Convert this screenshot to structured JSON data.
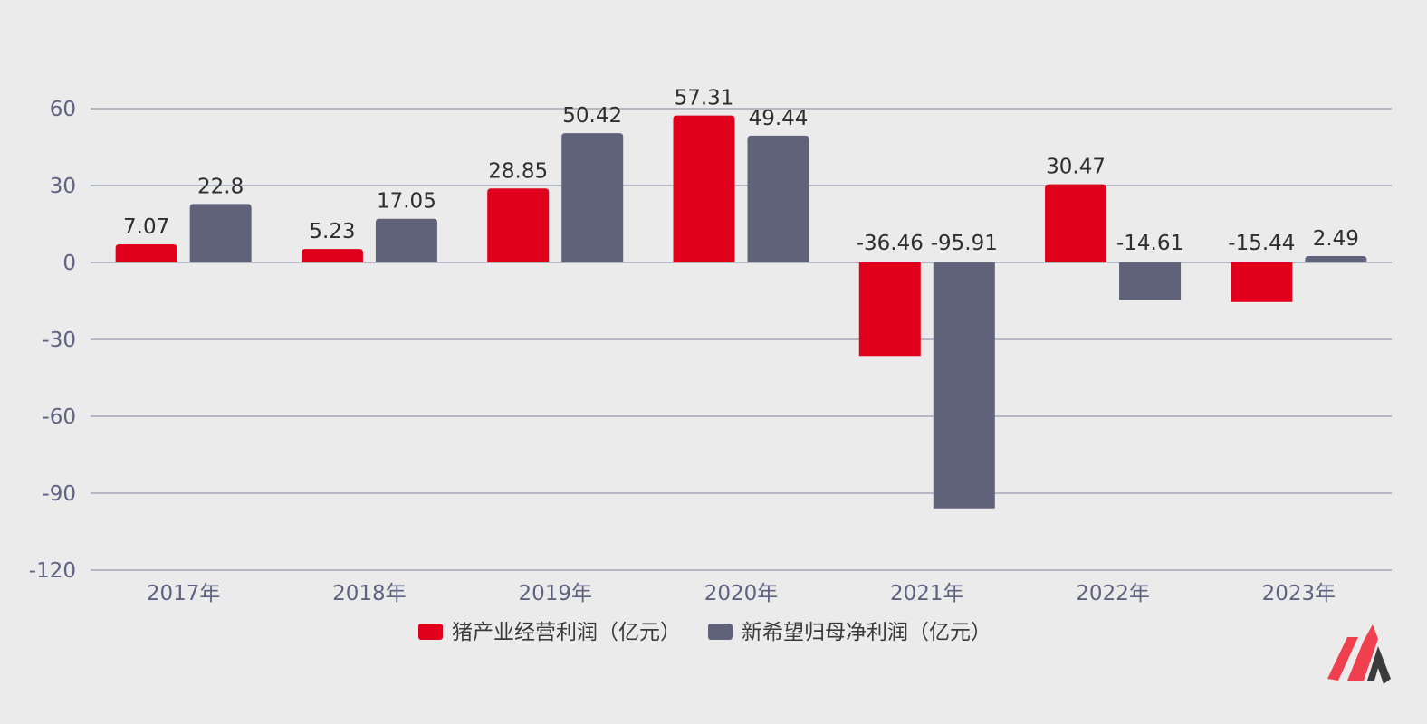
{
  "chart_data": {
    "type": "bar",
    "title": "",
    "xlabel": "",
    "ylabel": "",
    "categories": [
      "2017年",
      "2018年",
      "2019年",
      "2020年",
      "2021年",
      "2022年",
      "2023年"
    ],
    "series": [
      {
        "name": "猪产业经营利润（亿元）",
        "values": [
          7.07,
          5.23,
          28.85,
          57.31,
          -36.46,
          30.47,
          -15.44
        ],
        "labels": [
          "7.07",
          "5.23",
          "28.85",
          "57.31",
          "-36.46",
          "30.47",
          "-15.44"
        ],
        "color": "#e0001b"
      },
      {
        "name": "新希望归母净利润（亿元）",
        "values": [
          22.8,
          17.05,
          50.42,
          49.44,
          -95.91,
          -14.61,
          2.49
        ],
        "labels": [
          "22.8",
          "17.05",
          "50.42",
          "49.44",
          "-95.91",
          "-14.61",
          "2.49"
        ],
        "color": "#5f6279"
      }
    ],
    "ylim": [
      -120,
      60
    ],
    "yticks": [
      60,
      30,
      0,
      -30,
      -60,
      -90,
      -120
    ],
    "grid": true,
    "legend_position": "bottom-center"
  },
  "colors": {
    "background": "#ebebeb",
    "grid": "#a4a6b8",
    "tick_text": "#5f6280",
    "logo_red": "#f0404f",
    "logo_dark": "#3b3b3b"
  },
  "icons": {
    "logo": "brand-logo-icon"
  }
}
